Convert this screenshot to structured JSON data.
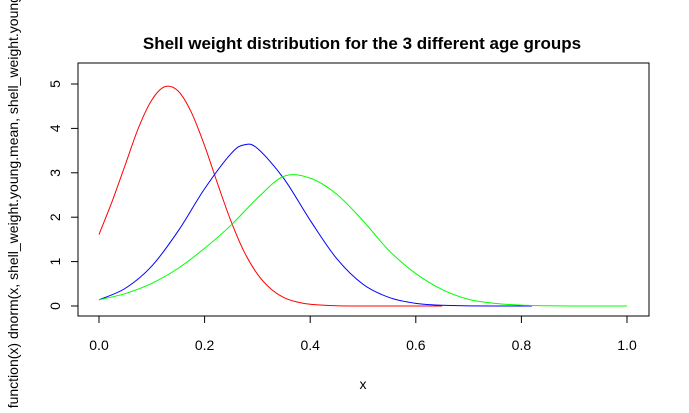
{
  "chart_data": {
    "type": "line",
    "title": "Shell weight distribution for the 3 different age groups",
    "xlabel": "x",
    "ylabel": "function(x) dnorm(x, shell_weight.young.mean, shell_weight.young.sd)",
    "xlim": [
      0,
      1
    ],
    "ylim": [
      0,
      5
    ],
    "x_ticks": [
      "0.0",
      "0.2",
      "0.4",
      "0.6",
      "0.8",
      "1.0"
    ],
    "y_ticks": [
      "0",
      "1",
      "2",
      "3",
      "4",
      "5"
    ],
    "grid": false,
    "legend": "none",
    "series": [
      {
        "color": "#ff0000",
        "x": [
          0.0,
          0.025,
          0.05,
          0.075,
          0.1,
          0.125,
          0.15,
          0.175,
          0.2,
          0.225,
          0.25,
          0.275,
          0.3,
          0.325,
          0.35,
          0.375,
          0.4,
          0.45,
          0.5,
          0.55,
          0.6,
          0.65
        ],
        "values": [
          1.61,
          2.36,
          3.19,
          4.02,
          4.64,
          4.94,
          4.84,
          4.36,
          3.61,
          2.74,
          1.91,
          1.22,
          0.72,
          0.39,
          0.19,
          0.09,
          0.04,
          0.005,
          0.0,
          0.0,
          0.0,
          0.0
        ]
      },
      {
        "color": "#0000ff",
        "x": [
          0.0,
          0.05,
          0.1,
          0.15,
          0.2,
          0.25,
          0.275,
          0.3,
          0.35,
          0.4,
          0.45,
          0.5,
          0.55,
          0.6,
          0.65,
          0.7,
          0.75,
          0.8,
          0.82
        ],
        "values": [
          0.14,
          0.4,
          0.9,
          1.69,
          2.64,
          3.43,
          3.63,
          3.55,
          2.87,
          1.93,
          1.07,
          0.49,
          0.19,
          0.06,
          0.016,
          0.004,
          0.001,
          0.0,
          0.0
        ]
      },
      {
        "color": "#00ff00",
        "x": [
          0.0,
          0.05,
          0.1,
          0.15,
          0.2,
          0.25,
          0.3,
          0.35,
          0.4,
          0.45,
          0.5,
          0.55,
          0.6,
          0.65,
          0.7,
          0.75,
          0.8,
          0.85,
          0.9,
          0.95,
          1.0
        ],
        "values": [
          0.14,
          0.28,
          0.51,
          0.85,
          1.3,
          1.82,
          2.43,
          2.92,
          2.88,
          2.52,
          1.92,
          1.24,
          0.73,
          0.37,
          0.15,
          0.06,
          0.02,
          0.005,
          0.001,
          0.0,
          0.0
        ]
      }
    ]
  }
}
